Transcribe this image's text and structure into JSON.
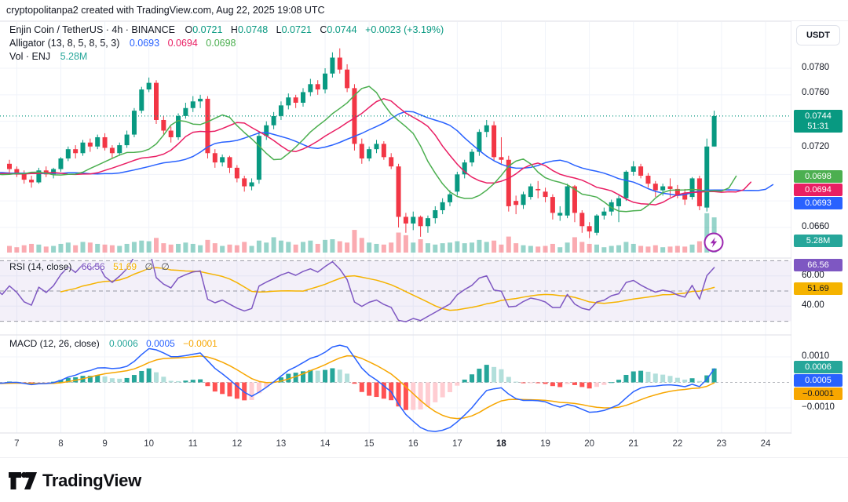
{
  "attribution": "cryptopolitanpa2 created with TradingView.com, Aug 22, 2025 19:08 UTC",
  "header": {
    "title": "Enjin Coin / TetherUS · 4h · BINANCE",
    "ohlc": [
      {
        "k": "O",
        "v": "0.0721"
      },
      {
        "k": "H",
        "v": "0.0748"
      },
      {
        "k": "L",
        "v": "0.0721"
      },
      {
        "k": "C",
        "v": "0.0744"
      }
    ],
    "change": "+0.0023 (+3.19%)"
  },
  "alligator_legend": {
    "title": "Alligator (13, 8, 5, 8, 5, 3)",
    "jaw": "0.0693",
    "teeth": "0.0694",
    "lips": "0.0698"
  },
  "volume_legend": {
    "title": "Vol · ENJ",
    "value": "5.28M"
  },
  "rsi_legend": {
    "title": "RSI (14, close)",
    "value": "66.56",
    "ma_value": "51.69",
    "placeholder1": "∅",
    "placeholder2": "∅"
  },
  "macd_legend": {
    "title": "MACD (12, 26, close)",
    "hist": "0.0006",
    "macd": "0.0005",
    "signal": "−0.0001"
  },
  "price_scale": {
    "currency": "USDT",
    "labels": {
      "p780": "0.0780",
      "p760": "0.0760",
      "p720": "0.0720",
      "p660": "0.0660"
    },
    "last_price": "0.0744",
    "countdown": "51:31",
    "badge_lips": "0.0698",
    "badge_teeth": "0.0694",
    "badge_jaw": "0.0693",
    "badge_volume": "5.28M"
  },
  "rsi_scale": {
    "badge_rsi": "66.56",
    "label_60": "60.00",
    "badge_ma": "51.69",
    "label_40": "40.00"
  },
  "macd_scale": {
    "label_top": "0.0010",
    "badge_hist": "0.0006",
    "badge_macd": "0.0005",
    "badge_signal": "−0.0001",
    "label_bottom": "−0.0010"
  },
  "logo": {
    "text": "TradingView"
  },
  "colors": {
    "up": "#089981",
    "down": "#f23645",
    "volUp": "rgba(8,153,129,0.42)",
    "volDown": "rgba(242,54,69,0.42)",
    "jaw": "#2962ff",
    "teeth": "#e91e63",
    "lips": "#4caf50",
    "rsi": "#7e57c2",
    "rsiMa": "#f5b300",
    "rsiBand": "rgba(126,87,194,0.09)",
    "macdLine": "#2962ff",
    "signalLine": "#f7a600",
    "histUp": "#26a69a",
    "histUpFade": "#b2dfdb",
    "histDn": "#ff5252",
    "histDnFade": "#ffcdd2",
    "grid": "#f0f3fa",
    "border": "#dcdee6",
    "dashed": "#787b86",
    "text": "#131722",
    "badgePrice": "#089981",
    "badgeVol": "#26a69a",
    "badgeLips": "#4caf50",
    "badgeTeeth": "#e91e63",
    "badgeJaw": "#2962ff",
    "badgeRsi": "#7e57c2",
    "badgeAmber": "#f5b300",
    "badgeHist": "#26a69a",
    "badgeMacd": "#2962ff",
    "badgeSignal": "#f7a600",
    "flash": "#9c27b0"
  },
  "chart_data": {
    "type": "candlestick",
    "symbol": "Enjin Coin / TetherUS",
    "interval": "4h",
    "exchange": "BINANCE",
    "price_unit": 0.0001,
    "volume_unit": "M",
    "time_axis_days": [
      7,
      8,
      9,
      10,
      11,
      12,
      13,
      14,
      15,
      16,
      17,
      18,
      19,
      20,
      21,
      22,
      23,
      24
    ],
    "bold_days": [
      18
    ],
    "price_gridlines": [
      660,
      680,
      700,
      720,
      740,
      760,
      780
    ],
    "last_close": 744,
    "indicators": {
      "alligator": {
        "jaw_len": 13,
        "jaw_shift": 8,
        "teeth_len": 8,
        "teeth_shift": 5,
        "lips_len": 5,
        "lips_shift": 3
      },
      "rsi": {
        "length": 14,
        "ma_length": 14,
        "upper": 70,
        "mid": 50,
        "lower": 30,
        "scale_marks": [
          60,
          40
        ]
      },
      "macd": {
        "fast": 12,
        "slow": 26,
        "signal": 9,
        "scale_marks": [
          10,
          -10
        ]
      }
    },
    "candles": [
      [
        708,
        711,
        701,
        704,
        1.0
      ],
      [
        704,
        706,
        698,
        701,
        0.8
      ],
      [
        701,
        703,
        693,
        696,
        1.1
      ],
      [
        696,
        699,
        690,
        694,
        1.3
      ],
      [
        694,
        705,
        693,
        703,
        1.2
      ],
      [
        703,
        706,
        698,
        700,
        0.9
      ],
      [
        700,
        705,
        697,
        704,
        1.0
      ],
      [
        704,
        713,
        702,
        712,
        1.3
      ],
      [
        712,
        721,
        710,
        719,
        1.5
      ],
      [
        719,
        722,
        712,
        716,
        1.1
      ],
      [
        716,
        726,
        714,
        724,
        1.6
      ],
      [
        724,
        727,
        717,
        721,
        1.5
      ],
      [
        721,
        730,
        719,
        728,
        1.3
      ],
      [
        728,
        731,
        718,
        720,
        1.2
      ],
      [
        720,
        722,
        712,
        716,
        1.1
      ],
      [
        716,
        724,
        714,
        722,
        1.0
      ],
      [
        722,
        733,
        720,
        730,
        1.3
      ],
      [
        730,
        750,
        728,
        748,
        1.6
      ],
      [
        748,
        766,
        746,
        764,
        1.8
      ],
      [
        764,
        773,
        762,
        769,
        1.7
      ],
      [
        769,
        771,
        738,
        741,
        2.2
      ],
      [
        741,
        744,
        730,
        733,
        1.4
      ],
      [
        733,
        736,
        724,
        728,
        1.2
      ],
      [
        728,
        746,
        726,
        744,
        1.3
      ],
      [
        744,
        754,
        742,
        750,
        1.5
      ],
      [
        750,
        759,
        747,
        755,
        1.3
      ],
      [
        755,
        760,
        750,
        757,
        1.1
      ],
      [
        757,
        759,
        712,
        716,
        1.9
      ],
      [
        716,
        719,
        705,
        709,
        1.4
      ],
      [
        709,
        715,
        706,
        713,
        1.0
      ],
      [
        713,
        714,
        701,
        705,
        1.2
      ],
      [
        705,
        707,
        694,
        697,
        1.1
      ],
      [
        697,
        699,
        687,
        691,
        1.6
      ],
      [
        691,
        697,
        688,
        694,
        1.0
      ],
      [
        696,
        732,
        693,
        729,
        1.8
      ],
      [
        729,
        740,
        726,
        737,
        1.5
      ],
      [
        737,
        747,
        734,
        744,
        2.3
      ],
      [
        744,
        755,
        741,
        752,
        1.8
      ],
      [
        752,
        761,
        749,
        758,
        1.6
      ],
      [
        758,
        760,
        750,
        754,
        1.2
      ],
      [
        754,
        765,
        751,
        762,
        1.6
      ],
      [
        762,
        772,
        759,
        768,
        1.8
      ],
      [
        768,
        771,
        760,
        764,
        1.3
      ],
      [
        764,
        780,
        761,
        776,
        1.9
      ],
      [
        776,
        792,
        773,
        788,
        2.0
      ],
      [
        788,
        795,
        776,
        779,
        1.7
      ],
      [
        779,
        783,
        762,
        765,
        1.5
      ],
      [
        765,
        768,
        718,
        723,
        3.4
      ],
      [
        723,
        727,
        708,
        712,
        2.2
      ],
      [
        712,
        721,
        710,
        719,
        1.5
      ],
      [
        719,
        726,
        716,
        723,
        1.3
      ],
      [
        723,
        725,
        711,
        713,
        1.2
      ],
      [
        713,
        716,
        704,
        706,
        1.5
      ],
      [
        706,
        708,
        660,
        668,
        3.0
      ],
      [
        668,
        671,
        656,
        663,
        2.6
      ],
      [
        663,
        672,
        658,
        668,
        1.5
      ],
      [
        668,
        669,
        653,
        661,
        2.0
      ],
      [
        661,
        669,
        656,
        667,
        1.4
      ],
      [
        667,
        676,
        663,
        673,
        1.2
      ],
      [
        673,
        682,
        670,
        679,
        1.4
      ],
      [
        679,
        688,
        676,
        685,
        1.5
      ],
      [
        687,
        702,
        684,
        700,
        1.7
      ],
      [
        700,
        711,
        697,
        709,
        1.4
      ],
      [
        709,
        719,
        706,
        717,
        1.5
      ],
      [
        717,
        734,
        714,
        732,
        1.9
      ],
      [
        732,
        741,
        728,
        737,
        1.6
      ],
      [
        737,
        740,
        710,
        713,
        1.8
      ],
      [
        713,
        728,
        708,
        711,
        1.2
      ],
      [
        711,
        714,
        672,
        676,
        2.4
      ],
      [
        680,
        684,
        670,
        677,
        1.4
      ],
      [
        677,
        687,
        674,
        685,
        1.1
      ],
      [
        683,
        693,
        681,
        691,
        1.0
      ],
      [
        689,
        695,
        682,
        688,
        0.9
      ],
      [
        687,
        690,
        679,
        683,
        1.0
      ],
      [
        683,
        685,
        666,
        671,
        1.3
      ],
      [
        669,
        676,
        665,
        671,
        0.8
      ],
      [
        669,
        693,
        667,
        691,
        1.5
      ],
      [
        691,
        692,
        664,
        671,
        2.3
      ],
      [
        671,
        673,
        656,
        661,
        1.6
      ],
      [
        661,
        664,
        652,
        657,
        1.3
      ],
      [
        656,
        670,
        654,
        669,
        1.2
      ],
      [
        669,
        675,
        666,
        672,
        0.8
      ],
      [
        672,
        681,
        669,
        679,
        1.0
      ],
      [
        676,
        684,
        664,
        682,
        1.1
      ],
      [
        682,
        703,
        680,
        702,
        1.6
      ],
      [
        702,
        710,
        699,
        706,
        1.3
      ],
      [
        706,
        708,
        697,
        699,
        1.0
      ],
      [
        699,
        701,
        690,
        693,
        0.9
      ],
      [
        693,
        695,
        683,
        688,
        1.1
      ],
      [
        688,
        693,
        684,
        691,
        0.8
      ],
      [
        691,
        697,
        683,
        689,
        0.9
      ],
      [
        689,
        692,
        682,
        684,
        1.0
      ],
      [
        686,
        689,
        677,
        681,
        0.9
      ],
      [
        683,
        698,
        681,
        697,
        1.2
      ],
      [
        697,
        699,
        673,
        676,
        1.7
      ],
      [
        675,
        727,
        672,
        721,
        5.9
      ],
      [
        721,
        748,
        721,
        744,
        5.28
      ]
    ]
  }
}
